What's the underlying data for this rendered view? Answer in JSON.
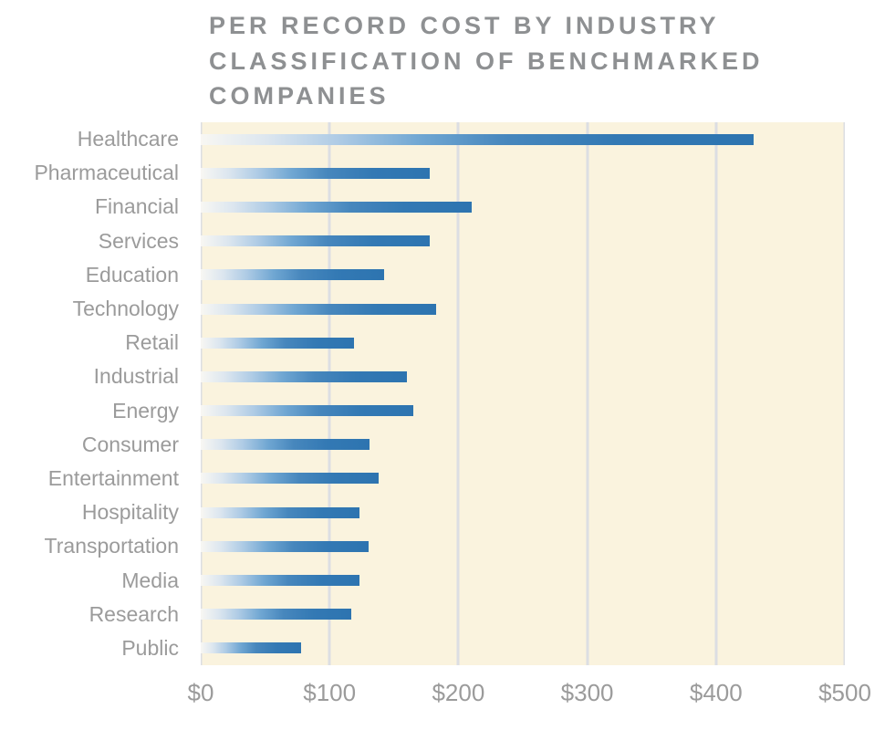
{
  "title": {
    "lines": [
      "PER RECORD COST BY INDUSTRY",
      "CLASSIFICATION OF BENCHMARKED",
      "COMPANIES"
    ]
  },
  "chart_data": {
    "type": "bar",
    "orientation": "horizontal",
    "title": "PER RECORD COST BY INDUSTRY CLASSIFICATION OF BENCHMARKED COMPANIES",
    "categories": [
      "Healthcare",
      "Pharmaceutical",
      "Financial",
      "Services",
      "Education",
      "Technology",
      "Retail",
      "Industrial",
      "Energy",
      "Consumer",
      "Entertainment",
      "Hospitality",
      "Transportation",
      "Media",
      "Research",
      "Public"
    ],
    "values": [
      429,
      178,
      210,
      178,
      142,
      183,
      119,
      160,
      165,
      131,
      138,
      123,
      130,
      123,
      117,
      78
    ],
    "value_prefix": "$",
    "xlabel": "",
    "ylabel": "",
    "xlim": [
      0,
      500
    ],
    "x_ticks": {
      "labels": [
        "$0",
        "$100",
        "$200",
        "$300",
        "$400",
        "$500"
      ],
      "values": [
        0,
        100,
        200,
        300,
        400,
        500
      ]
    },
    "grid": "vertical-only",
    "legend": "none"
  },
  "theme": {
    "page_bg": "#ffffff",
    "plot_bg": "#faf3de",
    "grid_color": "#dcdee3",
    "title_color": "#8e9092",
    "label_color": "#9b9b9b",
    "bar_end_color": "#2d74b0",
    "bar_gradient": [
      "#f8f7f3 0%",
      "#dce6ef 12%",
      "#aecbe5 25%",
      "#6fa6d2 40%",
      "#4787bd 55%",
      "#3379b4 75%",
      "#2d74b0 100%"
    ]
  }
}
